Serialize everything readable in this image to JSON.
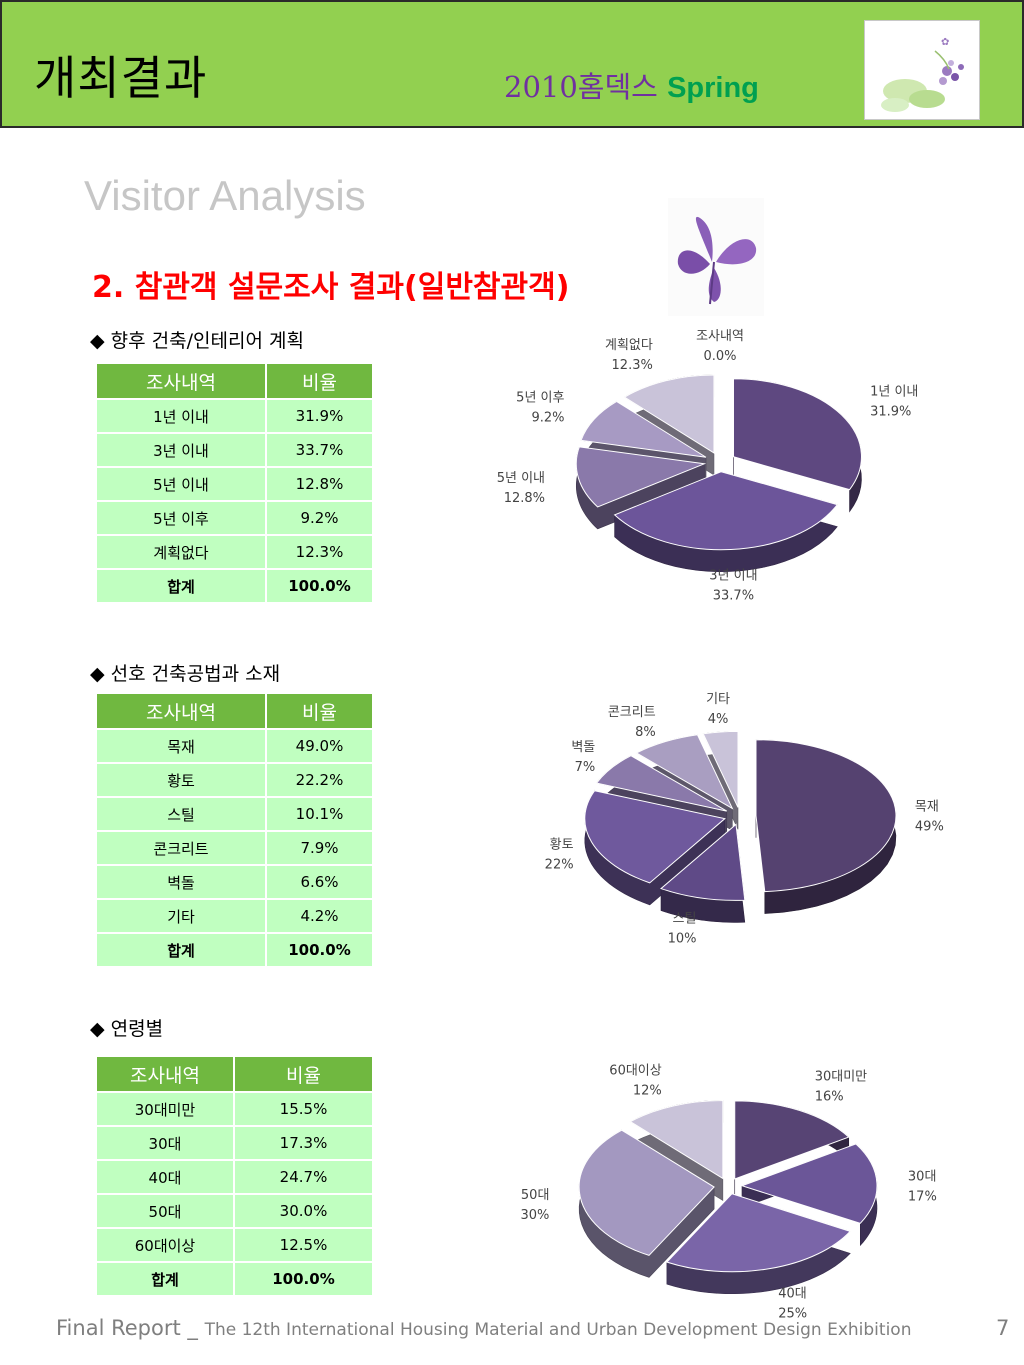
{
  "header": {
    "title": "개최결과",
    "subtitle_year": "2010홈덱스",
    "subtitle_season": "Spring",
    "logo_icon": "flower-illustration-icon"
  },
  "heading": "Visitor Analysis",
  "section_title": "2. 참관객 설문조사 결과(일반참관객)",
  "butterfly_icon": "butterfly-icon",
  "survey_plan": {
    "subhead": "◆ 향후 건축/인테리어 계획",
    "col_item": "조사내역",
    "col_ratio": "비율",
    "rows": [
      {
        "item": "1년 이내",
        "ratio": "31.9%"
      },
      {
        "item": "3년 이내",
        "ratio": "33.7%"
      },
      {
        "item": "5년 이내",
        "ratio": "12.8%"
      },
      {
        "item": "5년 이후",
        "ratio": "9.2%"
      },
      {
        "item": "계획없다",
        "ratio": "12.3%"
      }
    ],
    "total": {
      "item": "합계",
      "ratio": "100.0%"
    }
  },
  "survey_method": {
    "subhead": "◆ 선호 건축공법과 소재",
    "col_item": "조사내역",
    "col_ratio": "비율",
    "rows": [
      {
        "item": "목재",
        "ratio": "49.0%"
      },
      {
        "item": "황토",
        "ratio": "22.2%"
      },
      {
        "item": "스틸",
        "ratio": "10.1%"
      },
      {
        "item": "콘크리트",
        "ratio": "7.9%"
      },
      {
        "item": "벽돌",
        "ratio": "6.6%"
      },
      {
        "item": "기타",
        "ratio": "4.2%"
      }
    ],
    "total": {
      "item": "합계",
      "ratio": "100.0%"
    }
  },
  "survey_age": {
    "subhead": "◆ 연령별",
    "col_item": "조사내역",
    "col_ratio": "비율",
    "rows": [
      {
        "item": "30대미만",
        "ratio": "15.5%"
      },
      {
        "item": "30대",
        "ratio": "17.3%"
      },
      {
        "item": "40대",
        "ratio": "24.7%"
      },
      {
        "item": "50대",
        "ratio": "30.0%"
      },
      {
        "item": "60대이상",
        "ratio": "12.5%"
      }
    ],
    "total": {
      "item": "합계",
      "ratio": "100.0%"
    }
  },
  "chart_data": [
    {
      "type": "pie",
      "categories": [
        "1년 이내",
        "3년 이내",
        "5년 이내",
        "5년 이후",
        "계획없다",
        "조사내역"
      ],
      "values": [
        31.9,
        33.7,
        12.8,
        9.2,
        12.3,
        0.0
      ],
      "labels": [
        "31.9%",
        "33.7%",
        "12.8%",
        "9.2%",
        "12.3%",
        "0.0%"
      ],
      "colors": [
        "#5e4880",
        "#6c559a",
        "#8a79aa",
        "#a79ac3",
        "#c9c3d9",
        "#e0dcea"
      ]
    },
    {
      "type": "pie",
      "categories": [
        "목재",
        "스틸",
        "황토",
        "벽돌",
        "콘크리트",
        "기타"
      ],
      "values": [
        49,
        10,
        22,
        7,
        8,
        4
      ],
      "labels": [
        "49%",
        "10%",
        "22%",
        "7%",
        "8%",
        "4%"
      ],
      "colors": [
        "#554270",
        "#5f4a87",
        "#6f599d",
        "#8a79aa",
        "#a99ec1",
        "#c9c3d9"
      ]
    },
    {
      "type": "pie",
      "categories": [
        "30대미만",
        "30대",
        "40대",
        "50대",
        "60대이상"
      ],
      "values": [
        16,
        17,
        25,
        30,
        12
      ],
      "labels": [
        "16%",
        "17%",
        "25%",
        "30%",
        "12%"
      ],
      "colors": [
        "#574474",
        "#6b5698",
        "#7a65a8",
        "#a398c0",
        "#c9c3d9"
      ]
    }
  ],
  "footer": {
    "report": "Final   Report _",
    "exhibition": "The 12th International Housing Material and Urban Development Design Exhibition",
    "page": "7"
  }
}
